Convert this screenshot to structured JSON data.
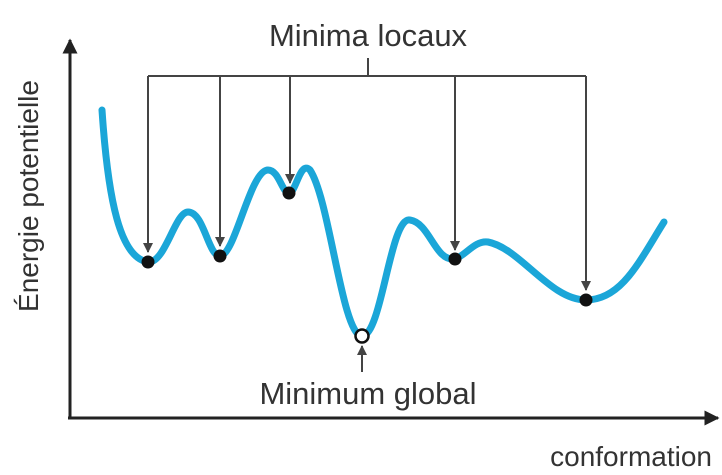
{
  "diagram": {
    "y_axis_label": "Énergie potentielle",
    "x_axis_label": "conformation",
    "local_minima_label": "Minima locaux",
    "global_minimum_label": "Minimum global",
    "local_minima_count": 5,
    "global_minima_count": 1
  },
  "colors": {
    "curve": "#1ba6d8",
    "axes": "#222222",
    "text": "#333333",
    "pointers": "#444444",
    "local_minimum_marker": "#111111",
    "global_minimum_marker": "#ffffff"
  }
}
